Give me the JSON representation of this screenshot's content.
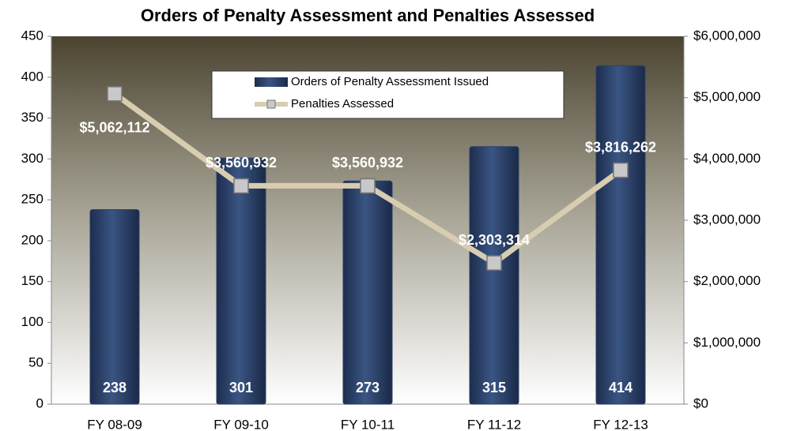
{
  "chart_data": {
    "type": "bar_line",
    "title": "Orders of Penalty Assessment and Penalties Assessed",
    "categories": [
      "FY 08-09",
      "FY 09-10",
      "FY 10-11",
      "FY 11-12",
      "FY 12-13"
    ],
    "series": [
      {
        "name": "Orders of Penalty Assessment Issued",
        "type": "bar",
        "color": "#2b4069",
        "values": [
          238,
          301,
          273,
          315,
          414
        ]
      },
      {
        "name": "Penalties Assessed",
        "type": "line",
        "axis": "y2",
        "color": "#d8cdb0",
        "values": [
          5062112,
          3560932,
          3560932,
          2303314,
          3816262
        ],
        "value_labels": [
          "$5,062,112",
          "$3,560,932",
          "$3,560,932",
          "$2,303,314",
          "$3,816,262"
        ]
      }
    ],
    "ylim": [
      0,
      450
    ],
    "yticks": [
      0,
      50,
      100,
      150,
      200,
      250,
      300,
      350,
      400,
      450
    ],
    "y2lim": [
      0,
      6000000
    ],
    "y2ticks": [
      {
        "value": 0,
        "label": "$0"
      },
      {
        "value": 1000000,
        "label": "$1,000,000"
      },
      {
        "value": 2000000,
        "label": "$2,000,000"
      },
      {
        "value": 3000000,
        "label": "$3,000,000"
      },
      {
        "value": 4000000,
        "label": "$4,000,000"
      },
      {
        "value": 5000000,
        "label": "$5,000,000"
      },
      {
        "value": 6000000,
        "label": "$6,000,000"
      }
    ],
    "legend": "top"
  }
}
